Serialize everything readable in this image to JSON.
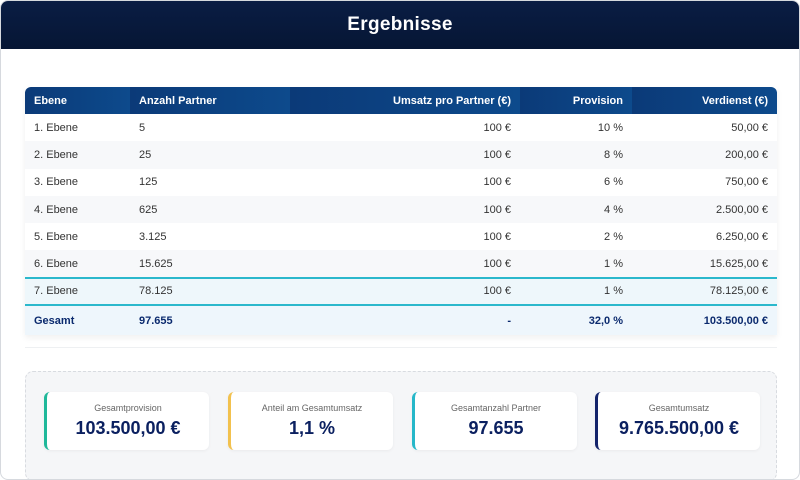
{
  "title": "Ergebnisse",
  "table": {
    "headers": [
      "Ebene",
      "Anzahl Partner",
      "Umsatz pro Partner (€)",
      "Provision",
      "Verdienst (€)"
    ],
    "rows": [
      [
        "1. Ebene",
        "5",
        "100 €",
        "10 %",
        "50,00 €"
      ],
      [
        "2. Ebene",
        "25",
        "100 €",
        "8 %",
        "200,00 €"
      ],
      [
        "3. Ebene",
        "125",
        "100 €",
        "6 %",
        "750,00 €"
      ],
      [
        "4. Ebene",
        "625",
        "100 €",
        "4 %",
        "2.500,00 €"
      ],
      [
        "5. Ebene",
        "3.125",
        "100 €",
        "2 %",
        "6.250,00 €"
      ],
      [
        "6. Ebene",
        "15.625",
        "100 €",
        "1 %",
        "15.625,00 €"
      ],
      [
        "7. Ebene",
        "78.125",
        "100 €",
        "1 %",
        "78.125,00 €"
      ]
    ],
    "total": [
      "Gesamt",
      "97.655",
      "-",
      "32,0 %",
      "103.500,00 €"
    ]
  },
  "summary": [
    {
      "label": "Gesamtprovision",
      "value": "103.500,00 €",
      "color": "#1fb89a"
    },
    {
      "label": "Anteil am Gesamtumsatz",
      "value": "1,1 %",
      "color": "#f2c14e"
    },
    {
      "label": "Gesamtanzahl Partner",
      "value": "97.655",
      "color": "#26b7c9"
    },
    {
      "label": "Gesamtumsatz",
      "value": "9.765.500,00 €",
      "color": "#14246b"
    }
  ]
}
